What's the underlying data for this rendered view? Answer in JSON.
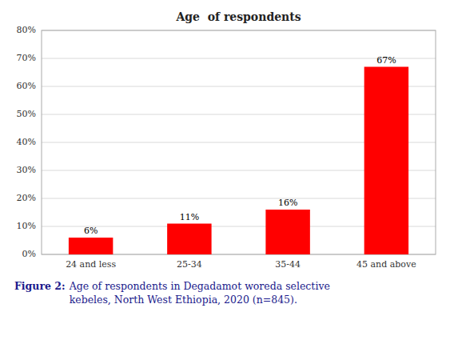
{
  "chart_data": {
    "type": "bar",
    "title": "Age  of respondents",
    "categories": [
      "24 and less",
      "25-34",
      "35-44",
      "45 and above"
    ],
    "values": [
      6,
      11,
      16,
      67
    ],
    "value_labels": [
      "6%",
      "11%",
      "16%",
      "67%"
    ],
    "data_labels": true,
    "color": "#ff0000",
    "ylim": [
      0,
      80
    ],
    "yticks": [
      {
        "value": 0,
        "label": "0%"
      },
      {
        "value": 10,
        "label": "10%"
      },
      {
        "value": 20,
        "label": "20%"
      },
      {
        "value": 30,
        "label": "30%"
      },
      {
        "value": 40,
        "label": "40%"
      },
      {
        "value": 50,
        "label": "50%"
      },
      {
        "value": 60,
        "label": "60%"
      },
      {
        "value": 70,
        "label": "70%"
      },
      {
        "value": 80,
        "label": "80%"
      }
    ],
    "grid": true,
    "annotations": [
      "Figure 2:",
      "Age of respondents in Degadamot woreda selective\nkebeles, North West Ethiopia, 2020 (n=845)."
    ]
  }
}
